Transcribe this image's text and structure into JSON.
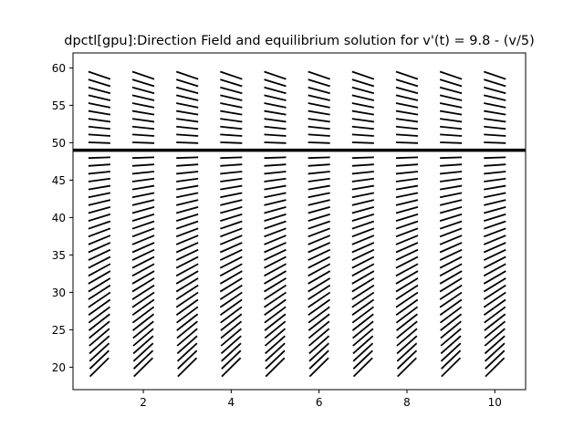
{
  "chart_data": {
    "type": "direction-field",
    "title": "dpctl[gpu]:Direction Field and equilibrium solution for v'(t) = 9.8 - (v/5)",
    "xlabel": "",
    "ylabel": "",
    "xlim": [
      0.4,
      10.7
    ],
    "ylim": [
      17,
      62
    ],
    "xticks": [
      2,
      4,
      6,
      8,
      10
    ],
    "yticks": [
      20,
      25,
      30,
      35,
      40,
      45,
      50,
      55,
      60
    ],
    "grid": false,
    "field": {
      "equation": "v'(t) = 9.8 - (v/5)",
      "t_values": [
        1,
        2,
        3,
        4,
        5,
        6,
        7,
        8,
        9,
        10
      ],
      "v_start": 20,
      "v_end": 59,
      "v_step": 1,
      "segment_color": "#000000"
    },
    "equilibrium": {
      "v": 49,
      "color": "#000000"
    }
  }
}
